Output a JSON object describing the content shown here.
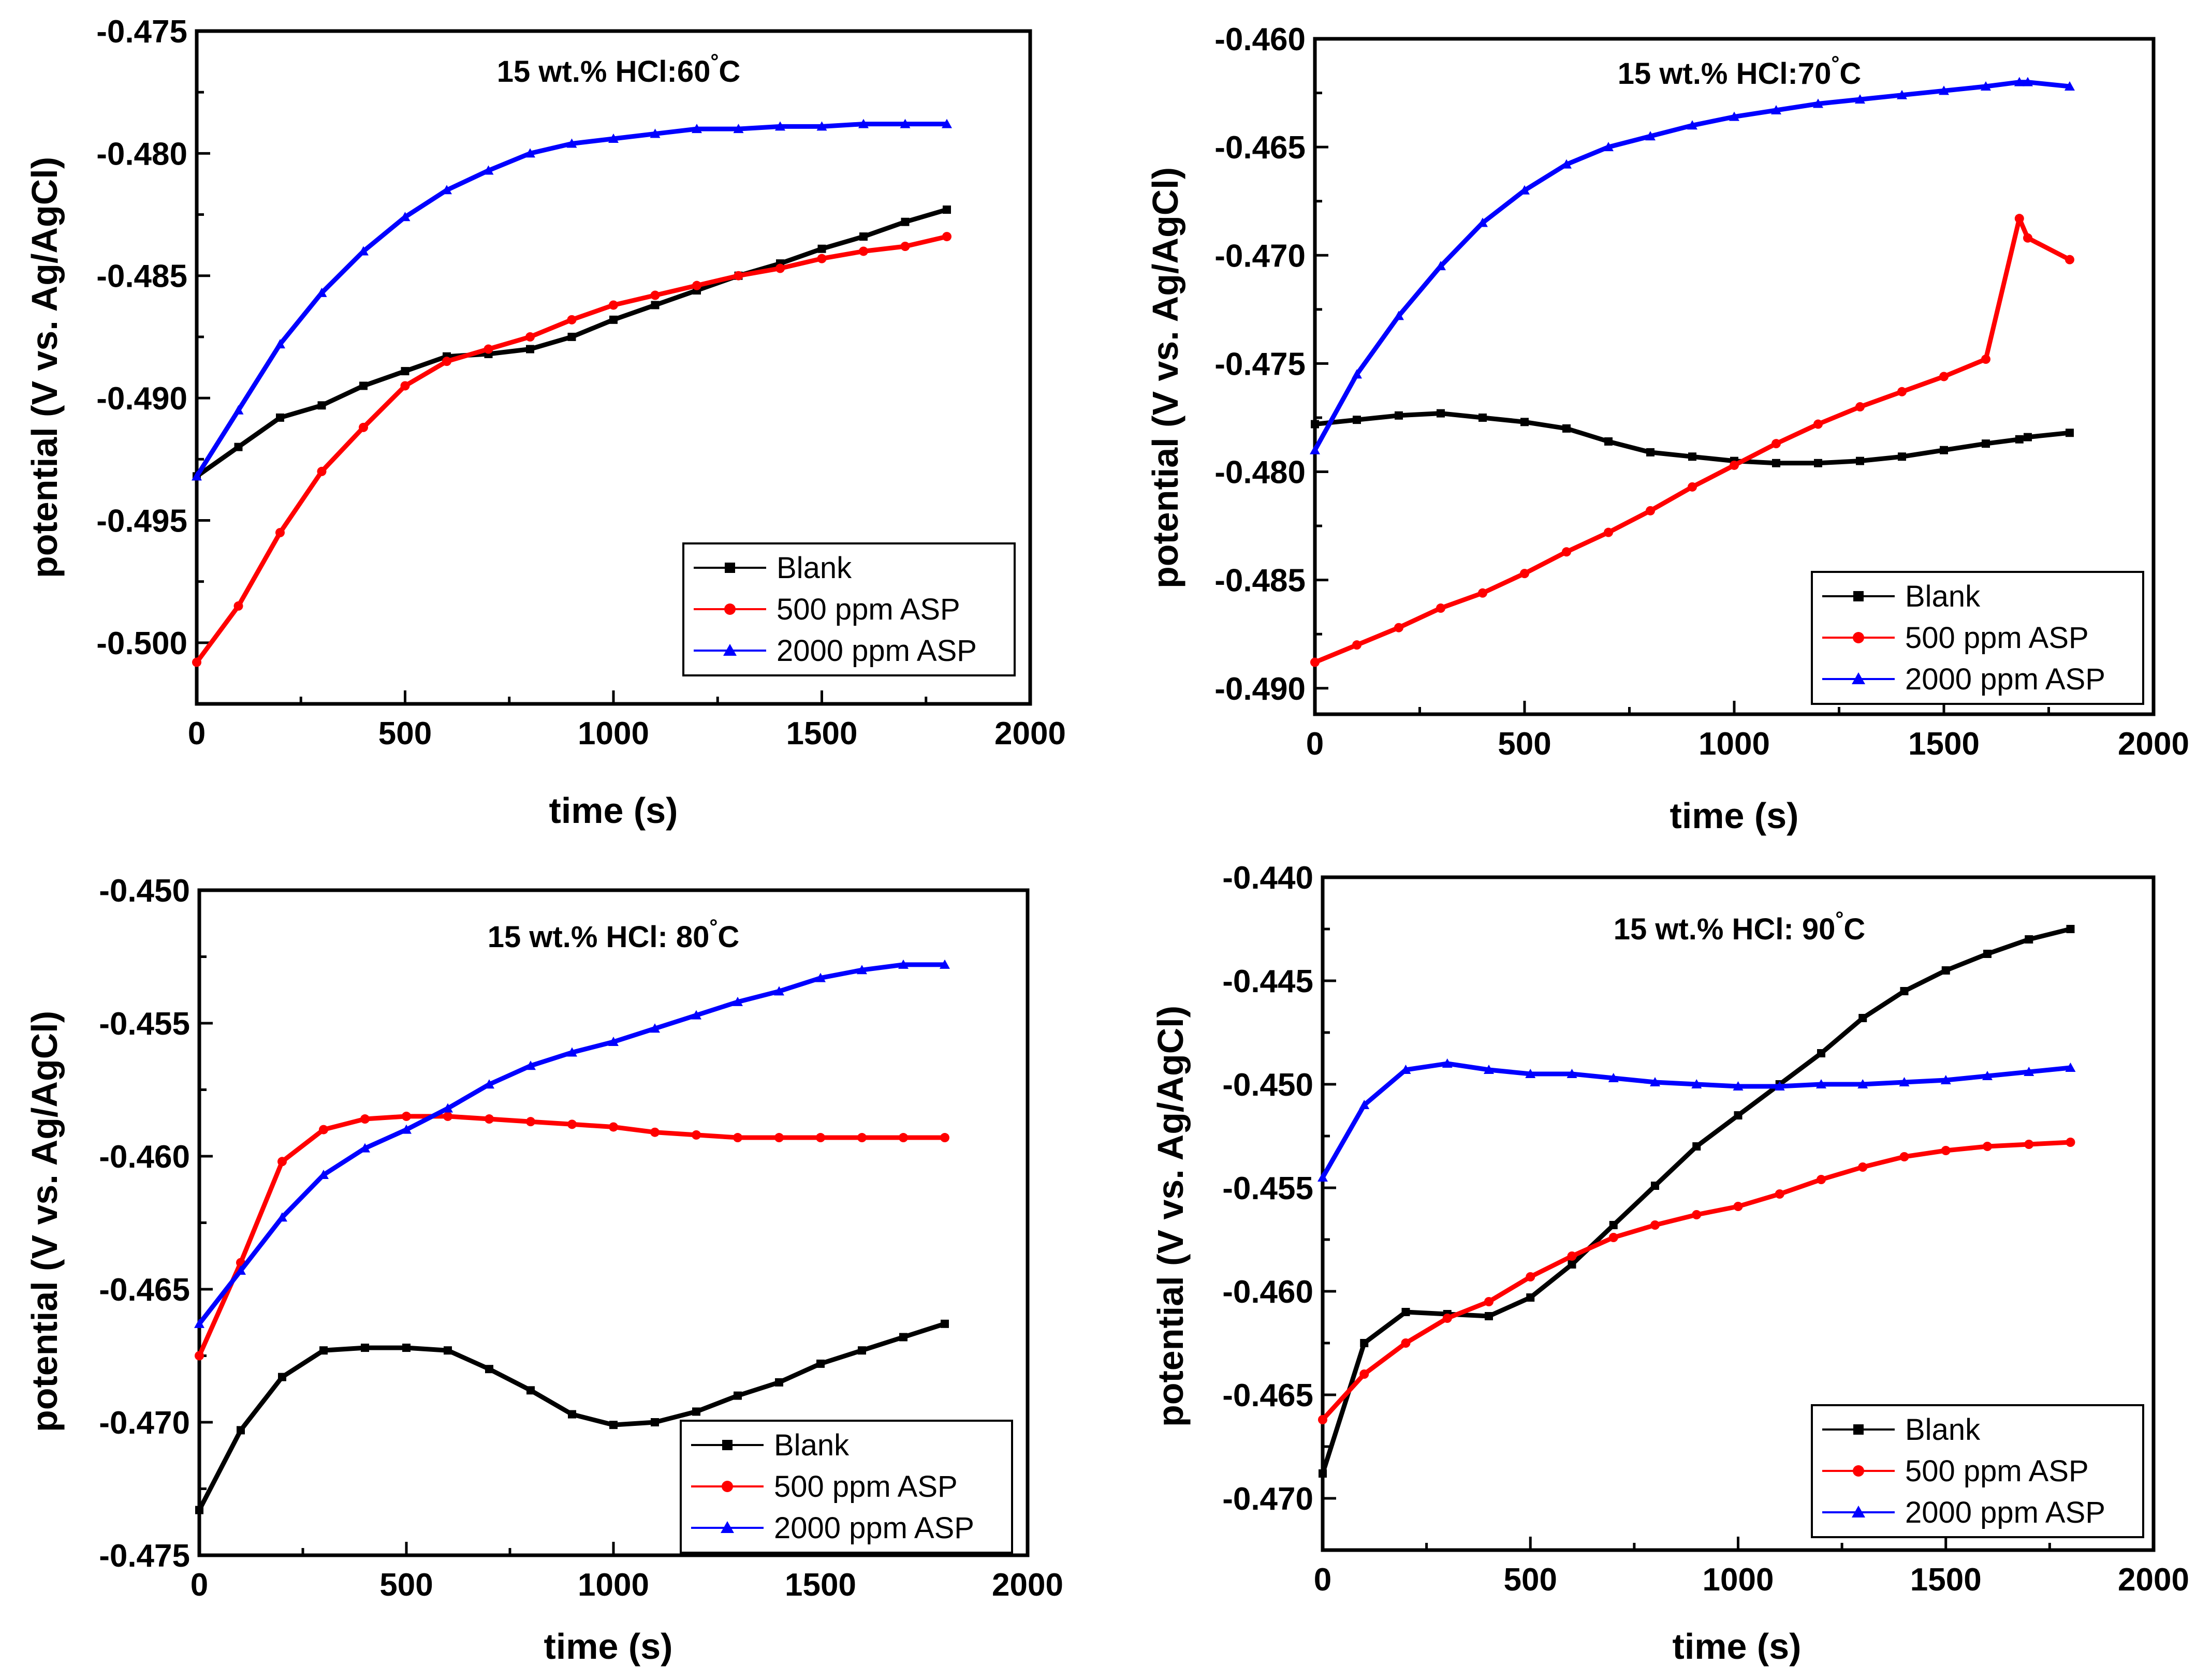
{
  "figure": {
    "panels": [
      {
        "title_text": "15 wt.% HCl:60",
        "title_unit": "C",
        "xlabel": "time (s)",
        "ylabel": "potential (V vs. Ag/AgCl)"
      },
      {
        "title_text": "15 wt.% HCl:70",
        "title_unit": "C",
        "xlabel": "time (s)",
        "ylabel": "potential (V vs. Ag/AgCl)"
      },
      {
        "title_text": "15 wt.% HCl: 80",
        "title_unit": "C",
        "xlabel": "time (s)",
        "ylabel": "potential (V vs. Ag/AgCl)"
      },
      {
        "title_text": "15 wt.% HCl: 90",
        "title_unit": "C",
        "xlabel": "time (s)",
        "ylabel": "potential (V vs. Ag/AgCl)"
      }
    ],
    "legend": [
      "Blank",
      "500 ppm ASP",
      "2000 ppm ASP"
    ],
    "colors": {
      "blank": "#000000",
      "asp500": "#ff0000",
      "asp2000": "#0000ff"
    },
    "markers": {
      "blank": "square",
      "asp500": "circle",
      "asp2000": "triangle"
    }
  },
  "chart_data": [
    {
      "type": "line",
      "title": "15 wt.% HCl:60°C",
      "xlabel": "time (s)",
      "ylabel": "potential (V vs. Ag/AgCl)",
      "xlim": [
        0,
        2000
      ],
      "ylim": [
        -0.5025,
        -0.475
      ],
      "xticks": [
        0,
        500,
        1000,
        1500,
        2000
      ],
      "yticks": [
        -0.5,
        -0.495,
        -0.49,
        -0.485,
        -0.48,
        -0.475
      ],
      "xtick_labels": [
        "0",
        "500",
        "1000",
        "1500",
        "2000"
      ],
      "ytick_labels": [
        "-0.500",
        "-0.495",
        "-0.490",
        "-0.485",
        "-0.480",
        "-0.475"
      ],
      "x": [
        0,
        100,
        200,
        300,
        400,
        500,
        600,
        700,
        800,
        900,
        1000,
        1100,
        1200,
        1300,
        1400,
        1500,
        1600,
        1700,
        1800
      ],
      "series": [
        {
          "name": "Blank",
          "values": [
            -0.4932,
            -0.492,
            -0.4908,
            -0.4903,
            -0.4895,
            -0.4889,
            -0.4883,
            -0.4882,
            -0.488,
            -0.4875,
            -0.4868,
            -0.4862,
            -0.4856,
            -0.485,
            -0.4845,
            -0.4839,
            -0.4834,
            -0.4828,
            -0.4823
          ]
        },
        {
          "name": "500 ppm ASP",
          "values": [
            -0.5008,
            -0.4985,
            -0.4955,
            -0.493,
            -0.4912,
            -0.4895,
            -0.4885,
            -0.488,
            -0.4875,
            -0.4868,
            -0.4862,
            -0.4858,
            -0.4854,
            -0.485,
            -0.4847,
            -0.4843,
            -0.484,
            -0.4838,
            -0.4834
          ]
        },
        {
          "name": "2000 ppm ASP",
          "values": [
            -0.4932,
            -0.4905,
            -0.4878,
            -0.4857,
            -0.484,
            -0.4826,
            -0.4815,
            -0.4807,
            -0.48,
            -0.4796,
            -0.4794,
            -0.4792,
            -0.479,
            -0.479,
            -0.4789,
            -0.4789,
            -0.4788,
            -0.4788,
            -0.4788
          ]
        }
      ]
    },
    {
      "type": "line",
      "title": "15 wt.% HCl:70°C",
      "xlabel": "time (s)",
      "ylabel": "potential (V vs. Ag/AgCl)",
      "xlim": [
        0,
        2000
      ],
      "ylim": [
        -0.4912,
        -0.46
      ],
      "xticks": [
        0,
        500,
        1000,
        1500,
        2000
      ],
      "yticks": [
        -0.49,
        -0.485,
        -0.48,
        -0.475,
        -0.47,
        -0.465,
        -0.46
      ],
      "xtick_labels": [
        "0",
        "500",
        "1000",
        "1500",
        "2000"
      ],
      "ytick_labels": [
        "-0.490",
        "-0.485",
        "-0.480",
        "-0.475",
        "-0.470",
        "-0.465",
        "-0.460"
      ],
      "x": [
        0,
        100,
        200,
        300,
        400,
        500,
        600,
        700,
        800,
        900,
        1000,
        1100,
        1200,
        1300,
        1400,
        1500,
        1600,
        1680,
        1700,
        1800
      ],
      "series": [
        {
          "name": "Blank",
          "values": [
            -0.4778,
            -0.4776,
            -0.4774,
            -0.4773,
            -0.4775,
            -0.4777,
            -0.478,
            -0.4786,
            -0.4791,
            -0.4793,
            -0.4795,
            -0.4796,
            -0.4796,
            -0.4795,
            -0.4793,
            -0.479,
            -0.4787,
            -0.4785,
            -0.4784,
            -0.4782
          ]
        },
        {
          "name": "500 ppm ASP",
          "values": [
            -0.4888,
            -0.488,
            -0.4872,
            -0.4863,
            -0.4856,
            -0.4847,
            -0.4837,
            -0.4828,
            -0.4818,
            -0.4807,
            -0.4797,
            -0.4787,
            -0.4778,
            -0.477,
            -0.4763,
            -0.4756,
            -0.4748,
            -0.4683,
            -0.4692,
            -0.4702
          ]
        },
        {
          "name": "2000 ppm ASP",
          "values": [
            -0.479,
            -0.4755,
            -0.4728,
            -0.4705,
            -0.4685,
            -0.467,
            -0.4658,
            -0.465,
            -0.4645,
            -0.464,
            -0.4636,
            -0.4633,
            -0.463,
            -0.4628,
            -0.4626,
            -0.4624,
            -0.4622,
            -0.462,
            -0.462,
            -0.4622
          ]
        }
      ]
    },
    {
      "type": "line",
      "title": "15 wt.% HCl: 80°C",
      "xlabel": "time (s)",
      "ylabel": "potential (V vs. Ag/AgCl)",
      "xlim": [
        0,
        2000
      ],
      "ylim": [
        -0.475,
        -0.45
      ],
      "xticks": [
        0,
        500,
        1000,
        1500,
        2000
      ],
      "yticks": [
        -0.475,
        -0.47,
        -0.465,
        -0.46,
        -0.455,
        -0.45
      ],
      "xtick_labels": [
        "0",
        "500",
        "1000",
        "1500",
        "2000"
      ],
      "ytick_labels": [
        "-0.475",
        "-0.470",
        "-0.465",
        "-0.460",
        "-0.455",
        "-0.450"
      ],
      "x": [
        0,
        100,
        200,
        300,
        400,
        500,
        600,
        700,
        800,
        900,
        1000,
        1100,
        1200,
        1300,
        1400,
        1500,
        1600,
        1700,
        1800
      ],
      "series": [
        {
          "name": "Blank",
          "values": [
            -0.4733,
            -0.4703,
            -0.4683,
            -0.4673,
            -0.4672,
            -0.4672,
            -0.4673,
            -0.468,
            -0.4688,
            -0.4697,
            -0.4701,
            -0.47,
            -0.4696,
            -0.469,
            -0.4685,
            -0.4678,
            -0.4673,
            -0.4668,
            -0.4663
          ]
        },
        {
          "name": "500 ppm ASP",
          "values": [
            -0.4675,
            -0.464,
            -0.4602,
            -0.459,
            -0.4586,
            -0.4585,
            -0.4585,
            -0.4586,
            -0.4587,
            -0.4588,
            -0.4589,
            -0.4591,
            -0.4592,
            -0.4593,
            -0.4593,
            -0.4593,
            -0.4593,
            -0.4593,
            -0.4593
          ]
        },
        {
          "name": "2000 ppm ASP",
          "values": [
            -0.4663,
            -0.4643,
            -0.4623,
            -0.4607,
            -0.4597,
            -0.459,
            -0.4582,
            -0.4573,
            -0.4566,
            -0.4561,
            -0.4557,
            -0.4552,
            -0.4547,
            -0.4542,
            -0.4538,
            -0.4533,
            -0.453,
            -0.4528,
            -0.4528
          ]
        }
      ]
    },
    {
      "type": "line",
      "title": "15 wt.% HCl: 90°C",
      "xlabel": "time (s)",
      "ylabel": "potential (V vs. Ag/AgCl)",
      "xlim": [
        0,
        2000
      ],
      "ylim": [
        -0.4725,
        -0.44
      ],
      "xticks": [
        0,
        500,
        1000,
        1500,
        2000
      ],
      "yticks": [
        -0.47,
        -0.465,
        -0.46,
        -0.455,
        -0.45,
        -0.445,
        -0.44
      ],
      "xtick_labels": [
        "0",
        "500",
        "1000",
        "1500",
        "2000"
      ],
      "ytick_labels": [
        "-0.470",
        "-0.465",
        "-0.460",
        "-0.455",
        "-0.450",
        "-0.445",
        "-0.440"
      ],
      "x": [
        0,
        100,
        200,
        300,
        400,
        500,
        600,
        700,
        800,
        900,
        1000,
        1100,
        1200,
        1300,
        1400,
        1500,
        1600,
        1700,
        1800
      ],
      "series": [
        {
          "name": "Blank",
          "values": [
            -0.4688,
            -0.4625,
            -0.461,
            -0.4611,
            -0.4612,
            -0.4603,
            -0.4587,
            -0.4568,
            -0.4549,
            -0.453,
            -0.4515,
            -0.45,
            -0.4485,
            -0.4468,
            -0.4455,
            -0.4445,
            -0.4437,
            -0.443,
            -0.4425
          ]
        },
        {
          "name": "500 ppm ASP",
          "values": [
            -0.4662,
            -0.464,
            -0.4625,
            -0.4613,
            -0.4605,
            -0.4593,
            -0.4583,
            -0.4574,
            -0.4568,
            -0.4563,
            -0.4559,
            -0.4553,
            -0.4546,
            -0.454,
            -0.4535,
            -0.4532,
            -0.453,
            -0.4529,
            -0.4528
          ]
        },
        {
          "name": "2000 ppm ASP",
          "values": [
            -0.4545,
            -0.451,
            -0.4493,
            -0.449,
            -0.4493,
            -0.4495,
            -0.4495,
            -0.4497,
            -0.4499,
            -0.45,
            -0.4501,
            -0.4501,
            -0.45,
            -0.45,
            -0.4499,
            -0.4498,
            -0.4496,
            -0.4494,
            -0.4492
          ]
        }
      ]
    }
  ]
}
